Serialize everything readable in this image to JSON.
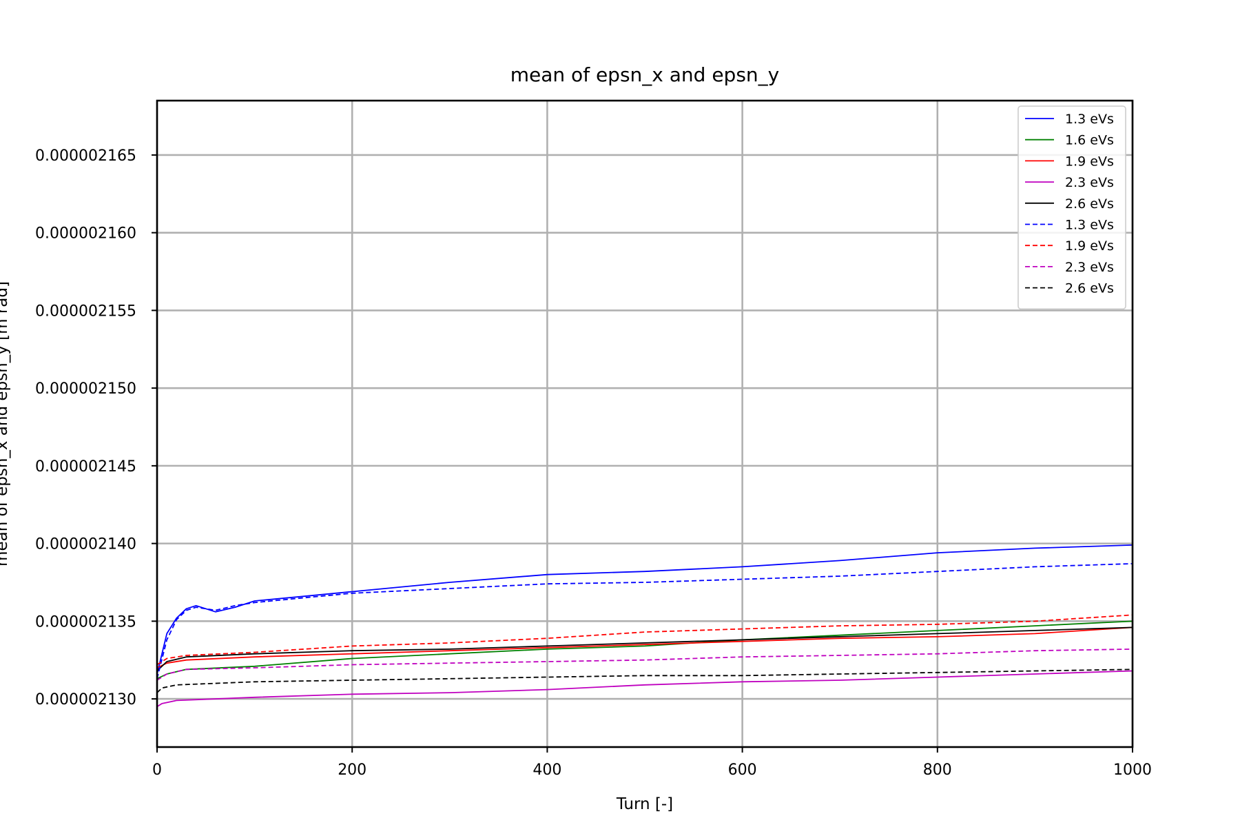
{
  "chart_data": {
    "type": "line",
    "title": "mean of epsn_x and epsn_y",
    "xlabel": "Turn [-]",
    "ylabel": "mean of epsn_x and epsn_y [m rad]",
    "xlim": [
      0,
      1000
    ],
    "ylim": [
      2.1269e-06,
      2.1685e-06
    ],
    "xticks": [
      0,
      200,
      400,
      600,
      800,
      1000
    ],
    "yticks": [
      2.13e-06,
      2.135e-06,
      2.14e-06,
      2.145e-06,
      2.15e-06,
      2.155e-06,
      2.16e-06,
      2.165e-06
    ],
    "xtick_labels": [
      "0",
      "200",
      "400",
      "600",
      "800",
      "1000"
    ],
    "ytick_labels": [
      "0.000002130",
      "0.000002135",
      "0.000002140",
      "0.000002145",
      "0.000002150",
      "0.000002155",
      "0.000002160",
      "0.000002165"
    ],
    "grid": true,
    "legend_position": "top-right",
    "series": [
      {
        "name": "1.3 eVs",
        "color": "#0000ff",
        "style": "solid",
        "x": [
          0,
          10,
          20,
          30,
          40,
          60,
          80,
          100,
          150,
          200,
          300,
          400,
          500,
          600,
          700,
          800,
          900,
          1000
        ],
        "y": [
          2.1316e-06,
          2.1342e-06,
          2.1352e-06,
          2.1358e-06,
          2.136e-06,
          2.1356e-06,
          2.1359e-06,
          2.1363e-06,
          2.1366e-06,
          2.1369e-06,
          2.1375e-06,
          2.138e-06,
          2.1382e-06,
          2.1385e-06,
          2.1389e-06,
          2.1394e-06,
          2.1397e-06,
          2.1399e-06
        ]
      },
      {
        "name": "1.6 eVs",
        "color": "#008000",
        "style": "solid",
        "x": [
          0,
          10,
          30,
          100,
          200,
          300,
          400,
          500,
          600,
          700,
          800,
          900,
          1000
        ],
        "y": [
          2.1313e-06,
          2.1316e-06,
          2.1319e-06,
          2.1321e-06,
          2.1326e-06,
          2.1329e-06,
          2.1332e-06,
          2.1334e-06,
          2.1338e-06,
          2.1341e-06,
          2.1344e-06,
          2.1347e-06,
          2.135e-06
        ]
      },
      {
        "name": "1.9 eVs",
        "color": "#ff0000",
        "style": "solid",
        "x": [
          0,
          10,
          30,
          100,
          200,
          300,
          400,
          500,
          600,
          700,
          800,
          900,
          1000
        ],
        "y": [
          2.132e-06,
          2.1323e-06,
          2.1325e-06,
          2.1327e-06,
          2.1329e-06,
          2.1331e-06,
          2.1333e-06,
          2.1335e-06,
          2.1337e-06,
          2.1339e-06,
          2.134e-06,
          2.1342e-06,
          2.1346e-06
        ]
      },
      {
        "name": "2.3 eVs",
        "color": "#bf00bf",
        "style": "solid",
        "x": [
          0,
          5,
          20,
          100,
          200,
          300,
          400,
          500,
          600,
          700,
          800,
          900,
          1000
        ],
        "y": [
          2.1295e-06,
          2.1297e-06,
          2.1299e-06,
          2.1301e-06,
          2.1303e-06,
          2.1304e-06,
          2.1306e-06,
          2.1309e-06,
          2.1311e-06,
          2.1312e-06,
          2.1314e-06,
          2.1316e-06,
          2.1318e-06
        ]
      },
      {
        "name": "2.6 eVs",
        "color": "#000000",
        "style": "solid",
        "x": [
          0,
          10,
          30,
          100,
          200,
          300,
          400,
          500,
          600,
          700,
          800,
          900,
          1000
        ],
        "y": [
          2.1318e-06,
          2.1324e-06,
          2.1327e-06,
          2.1329e-06,
          2.1331e-06,
          2.1332e-06,
          2.1334e-06,
          2.1336e-06,
          2.1338e-06,
          2.134e-06,
          2.1342e-06,
          2.1344e-06,
          2.1346e-06
        ]
      },
      {
        "name": "1.3 eVs",
        "color": "#0000ff",
        "style": "dashed",
        "x": [
          0,
          10,
          20,
          30,
          40,
          60,
          80,
          100,
          150,
          200,
          300,
          400,
          500,
          600,
          700,
          800,
          900,
          1000
        ],
        "y": [
          2.1313e-06,
          2.1338e-06,
          2.1351e-06,
          2.1357e-06,
          2.1359e-06,
          2.1357e-06,
          2.136e-06,
          2.1362e-06,
          2.1365e-06,
          2.1368e-06,
          2.1371e-06,
          2.1374e-06,
          2.1375e-06,
          2.1377e-06,
          2.1379e-06,
          2.1382e-06,
          2.1385e-06,
          2.1387e-06
        ]
      },
      {
        "name": "1.9 eVs",
        "color": "#ff0000",
        "style": "dashed",
        "x": [
          0,
          10,
          30,
          100,
          200,
          300,
          400,
          500,
          600,
          700,
          800,
          900,
          1000
        ],
        "y": [
          2.1322e-06,
          2.1326e-06,
          2.1328e-06,
          2.133e-06,
          2.1334e-06,
          2.1336e-06,
          2.1339e-06,
          2.1343e-06,
          2.1345e-06,
          2.1347e-06,
          2.1348e-06,
          2.135e-06,
          2.1354e-06
        ]
      },
      {
        "name": "2.3 eVs",
        "color": "#bf00bf",
        "style": "dashed",
        "x": [
          0,
          10,
          30,
          100,
          200,
          300,
          400,
          500,
          600,
          700,
          800,
          900,
          1000
        ],
        "y": [
          2.1312e-06,
          2.1316e-06,
          2.1319e-06,
          2.132e-06,
          2.1322e-06,
          2.1323e-06,
          2.1324e-06,
          2.1325e-06,
          2.1327e-06,
          2.1328e-06,
          2.1329e-06,
          2.1331e-06,
          2.1332e-06
        ]
      },
      {
        "name": "2.6 eVs",
        "color": "#000000",
        "style": "dashed",
        "x": [
          0,
          5,
          20,
          100,
          200,
          300,
          400,
          500,
          600,
          700,
          800,
          900,
          1000
        ],
        "y": [
          2.1304e-06,
          2.1307e-06,
          2.1309e-06,
          2.1311e-06,
          2.1312e-06,
          2.1313e-06,
          2.1314e-06,
          2.1315e-06,
          2.1315e-06,
          2.1316e-06,
          2.1317e-06,
          2.1318e-06,
          2.1319e-06
        ]
      }
    ]
  }
}
